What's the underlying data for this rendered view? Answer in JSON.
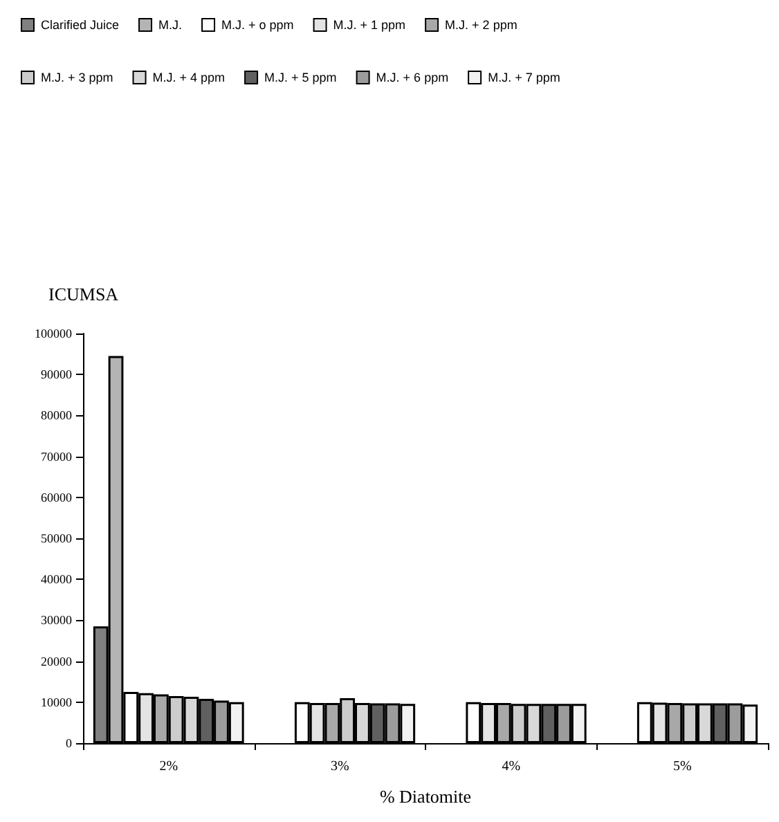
{
  "chart_data": {
    "type": "bar",
    "ylabel": "ICUMSA",
    "xlabel": "% Diatomite",
    "categories": [
      "2%",
      "3%",
      "4%",
      "5%"
    ],
    "ylim": [
      0,
      100000
    ],
    "yticks": [
      0,
      10000,
      20000,
      30000,
      40000,
      50000,
      60000,
      70000,
      80000,
      90000,
      100000
    ],
    "grid": false,
    "legend": "top",
    "series": [
      {
        "name": "Clarified Juice",
        "color": "#808080",
        "values": [
          28500,
          null,
          null,
          null
        ]
      },
      {
        "name": "M.J.",
        "color": "#b4b4b4",
        "values": [
          94500,
          null,
          null,
          null
        ]
      },
      {
        "name": "M.J. + o ppm",
        "color": "#ffffff",
        "values": [
          12500,
          10000,
          10000,
          10000
        ]
      },
      {
        "name": "M.J. + 1 ppm",
        "color": "#e4e4e4",
        "values": [
          12200,
          9800,
          9800,
          9900
        ]
      },
      {
        "name": "M.J. + 2 ppm",
        "color": "#a8a8a8",
        "values": [
          11900,
          9800,
          9800,
          9800
        ]
      },
      {
        "name": "M.J. + 3 ppm",
        "color": "#cccccc",
        "values": [
          11500,
          11000,
          9600,
          9700
        ]
      },
      {
        "name": "M.J. + 4 ppm",
        "color": "#d8d8d8",
        "values": [
          11300,
          9800,
          9600,
          9700
        ]
      },
      {
        "name": "M.J. + 5 ppm",
        "color": "#606060",
        "values": [
          10800,
          9700,
          9600,
          9700
        ]
      },
      {
        "name": "M.J. + 6 ppm",
        "color": "#9c9c9c",
        "values": [
          10400,
          9700,
          9600,
          9700
        ]
      },
      {
        "name": "M.J. + 7 ppm",
        "color": "#f2f2f2",
        "values": [
          10000,
          9600,
          9600,
          9400
        ]
      }
    ]
  }
}
